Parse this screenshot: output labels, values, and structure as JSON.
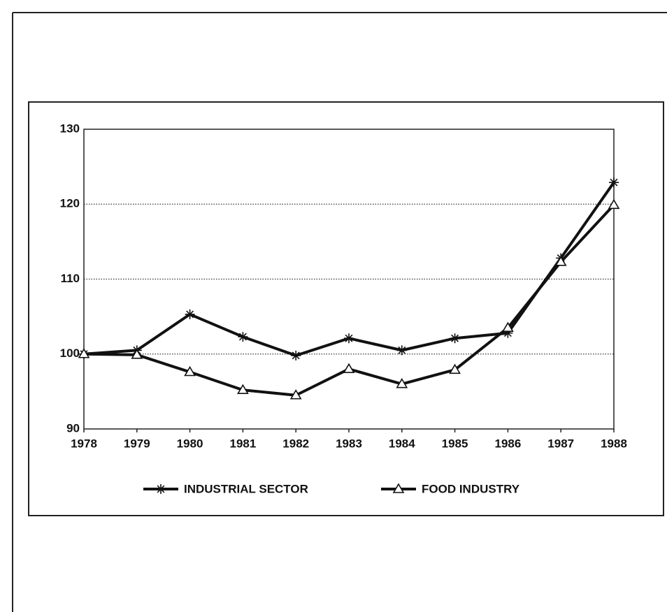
{
  "chart_data": {
    "type": "line",
    "x": [
      1978,
      1979,
      1980,
      1981,
      1982,
      1983,
      1984,
      1985,
      1986,
      1987,
      1988
    ],
    "xlim": [
      1978,
      1988
    ],
    "xticks": [
      1978,
      1979,
      1980,
      1981,
      1982,
      1983,
      1984,
      1985,
      1986,
      1987,
      1988
    ],
    "ylim": [
      90,
      130
    ],
    "yticks": [
      90,
      100,
      110,
      120,
      130
    ],
    "grid": true,
    "legend": "bottom",
    "series": [
      {
        "name": "INDUSTRIAL SECTOR",
        "color": "#111111",
        "marker": "asterisk",
        "values": [
          100,
          100.5,
          105.3,
          102.3,
          99.8,
          102.1,
          100.5,
          102.1,
          102.8,
          112.8,
          122.9
        ]
      },
      {
        "name": "FOOD INDUSTRY",
        "color": "#111111",
        "marker": "triangle",
        "values": [
          100,
          99.9,
          97.6,
          95.2,
          94.5,
          98,
          96,
          97.9,
          103.5,
          112.3,
          119.9
        ]
      }
    ]
  }
}
